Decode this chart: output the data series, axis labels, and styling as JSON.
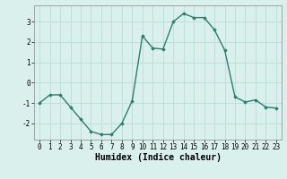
{
  "x": [
    0,
    1,
    2,
    3,
    4,
    5,
    6,
    7,
    8,
    9,
    10,
    11,
    12,
    13,
    14,
    15,
    16,
    17,
    18,
    19,
    20,
    21,
    22,
    23
  ],
  "y": [
    -1.0,
    -0.6,
    -0.6,
    -1.2,
    -1.8,
    -2.4,
    -2.55,
    -2.55,
    -2.0,
    -0.9,
    2.3,
    1.7,
    1.65,
    3.0,
    3.4,
    3.2,
    3.2,
    2.6,
    1.6,
    -0.7,
    -0.95,
    -0.85,
    -1.2,
    -1.25
  ],
  "line_color": "#2e7d6e",
  "marker": "D",
  "markersize": 1.8,
  "linewidth": 1.0,
  "xlabel": "Humidex (Indice chaleur)",
  "xlabel_fontsize": 7,
  "xlim": [
    -0.5,
    23.5
  ],
  "ylim": [
    -2.8,
    3.8
  ],
  "yticks": [
    -2,
    -1,
    0,
    1,
    2,
    3
  ],
  "xticks": [
    0,
    1,
    2,
    3,
    4,
    5,
    6,
    7,
    8,
    9,
    10,
    11,
    12,
    13,
    14,
    15,
    16,
    17,
    18,
    19,
    20,
    21,
    22,
    23
  ],
  "tick_fontsize": 5.5,
  "grid_color": "#b8ddd8",
  "bg_color": "#daf0ec",
  "fig_bg_color": "#daf0ec",
  "spine_color": "#888888",
  "grid_linewidth": 0.6
}
